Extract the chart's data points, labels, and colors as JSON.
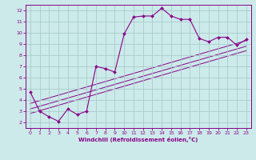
{
  "xlabel": "Windchill (Refroidissement éolien,°C)",
  "bg_color": "#cceaea",
  "grid_color": "#aacccc",
  "line_color": "#880088",
  "xlim": [
    -0.5,
    23.5
  ],
  "ylim": [
    1.5,
    12.5
  ],
  "xticks": [
    0,
    1,
    2,
    3,
    4,
    5,
    6,
    7,
    8,
    9,
    10,
    11,
    12,
    13,
    14,
    15,
    16,
    17,
    18,
    19,
    20,
    21,
    22,
    23
  ],
  "yticks": [
    2,
    3,
    4,
    5,
    6,
    7,
    8,
    9,
    10,
    11,
    12
  ],
  "scatter_x": [
    0,
    1,
    2,
    3,
    4,
    5,
    6,
    7,
    8,
    9,
    10,
    11,
    12,
    13,
    14,
    15,
    16,
    17,
    18,
    19,
    20,
    21,
    22,
    23
  ],
  "scatter_y": [
    4.7,
    3.0,
    2.5,
    2.1,
    3.2,
    2.7,
    3.0,
    7.0,
    6.8,
    6.5,
    9.9,
    11.4,
    11.5,
    11.5,
    12.2,
    11.5,
    11.2,
    11.2,
    9.5,
    9.2,
    9.6,
    9.6,
    8.9,
    9.4
  ],
  "line1_x": [
    0,
    23
  ],
  "line1_y": [
    3.2,
    8.8
  ],
  "line2_x": [
    0,
    23
  ],
  "line2_y": [
    2.8,
    8.4
  ],
  "line3_x": [
    0,
    23
  ],
  "line3_y": [
    3.7,
    9.3
  ]
}
